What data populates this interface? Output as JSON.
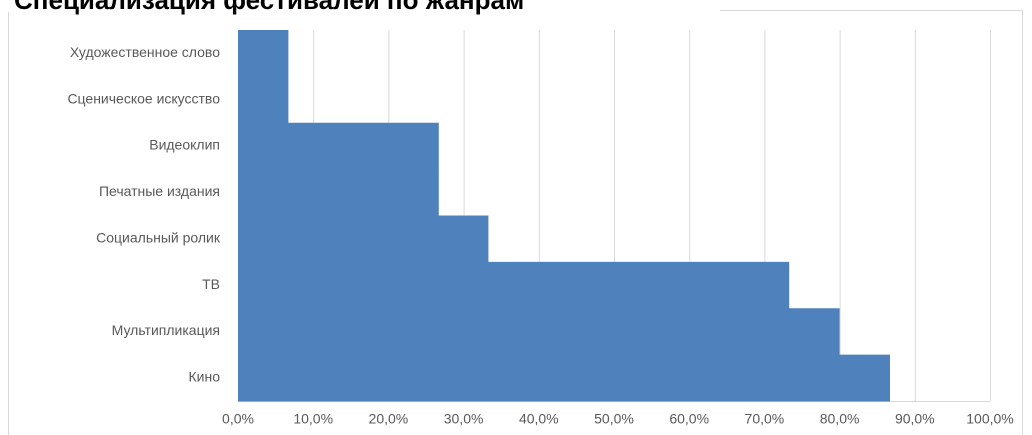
{
  "chart_data": {
    "type": "bar",
    "orientation": "horizontal",
    "title": "Специализация фестивалей по жанрам",
    "categories": [
      "Художественное слово",
      "Сценическое искусство",
      "Видеоклип",
      "Печатные издания",
      "Социальный ролик",
      "ТВ",
      "Мультипликация",
      "Кино"
    ],
    "values": [
      6.7,
      6.7,
      26.7,
      26.7,
      33.3,
      73.3,
      80.0,
      86.7
    ],
    "color": "#4f81bd",
    "xlim": [
      0,
      100
    ],
    "xticks": [
      {
        "value": 0,
        "label": "0,0%"
      },
      {
        "value": 10,
        "label": "10,0%"
      },
      {
        "value": 20,
        "label": "20,0%"
      },
      {
        "value": 30,
        "label": "30,0%"
      },
      {
        "value": 40,
        "label": "40,0%"
      },
      {
        "value": 50,
        "label": "50,0%"
      },
      {
        "value": 60,
        "label": "60,0%"
      },
      {
        "value": 70,
        "label": "70,0%"
      },
      {
        "value": 80,
        "label": "80,0%"
      },
      {
        "value": 90,
        "label": "90,0%"
      },
      {
        "value": 100,
        "label": "100,0%"
      }
    ],
    "grid": true
  }
}
